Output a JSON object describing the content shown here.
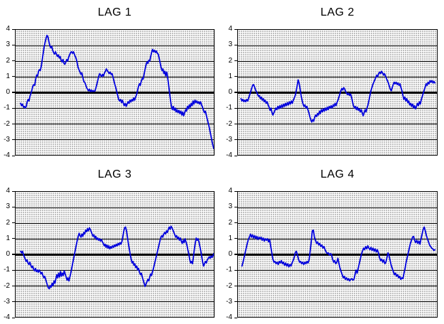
{
  "colors": {
    "series": "#0000dd",
    "plot_background": "#c0c0c0",
    "plot_pattern_dot": "#ffffff",
    "gridline": "#000000",
    "border": "#000000",
    "title_text": "#000000",
    "page_background": "#ffffff"
  },
  "chart_data": [
    {
      "type": "line",
      "title": "LAG 1",
      "xlabel": "",
      "ylabel": "",
      "ylim": [
        -4,
        4
      ],
      "yticks": [
        "4",
        "3",
        "2",
        "1",
        "0",
        "-1",
        "-2",
        "-3",
        "-4"
      ],
      "grid": "horizontal integer gridlines, bold zero line",
      "legend": "none",
      "x_start": 0.025,
      "x_end": 1.0,
      "series": [
        {
          "name": "lag1",
          "values": [
            -0.7,
            -0.85,
            -0.75,
            -0.95,
            -0.9,
            -1.0,
            -0.9,
            -0.6,
            -0.45,
            -0.55,
            -0.25,
            -0.05,
            0.15,
            0.4,
            0.5,
            0.45,
            0.85,
            1.1,
            1.05,
            1.35,
            1.45,
            1.4,
            1.7,
            2.1,
            2.5,
            2.9,
            3.2,
            3.45,
            3.65,
            3.55,
            3.25,
            3.0,
            2.85,
            2.95,
            2.7,
            2.55,
            2.45,
            2.6,
            2.45,
            2.3,
            2.4,
            2.2,
            2.3,
            2.05,
            1.95,
            2.1,
            1.85,
            1.8,
            1.95,
            2.1,
            2.0,
            2.25,
            2.4,
            2.55,
            2.6,
            2.5,
            2.6,
            2.45,
            2.3,
            2.15,
            1.9,
            1.6,
            1.45,
            1.3,
            1.15,
            1.25,
            0.95,
            0.7,
            0.65,
            0.5,
            0.3,
            0.2,
            0.1,
            0.2,
            0.05,
            0.15,
            0.05,
            0.12,
            0.06,
            0.1,
            0.3,
            0.55,
            0.8,
            1.05,
            1.2,
            1.1,
            1.0,
            1.15,
            1.05,
            1.25,
            1.35,
            1.5,
            1.4,
            1.3,
            1.2,
            1.3,
            1.15,
            1.2,
            1.0,
            0.75,
            0.5,
            0.3,
            0.05,
            -0.2,
            -0.45,
            -0.55,
            -0.45,
            -0.65,
            -0.5,
            -0.7,
            -0.85,
            -0.7,
            -0.9,
            -0.75,
            -0.6,
            -0.7,
            -0.5,
            -0.62,
            -0.45,
            -0.55,
            -0.35,
            -0.5,
            -0.3,
            -0.15,
            0.1,
            0.35,
            0.55,
            0.45,
            0.7,
            0.9,
            0.85,
            1.15,
            1.45,
            1.75,
            1.95,
            1.85,
            2.05,
            2.0,
            2.3,
            2.55,
            2.75,
            2.6,
            2.7,
            2.55,
            2.65,
            2.5,
            2.45,
            2.2,
            1.9,
            1.6,
            1.4,
            1.5,
            1.2,
            1.35,
            1.05,
            1.3,
            0.95,
            0.5,
            0.0,
            -0.5,
            -0.9,
            -1.1,
            -0.9,
            -1.15,
            -1.0,
            -1.25,
            -1.1,
            -1.3,
            -1.15,
            -1.35,
            -1.2,
            -1.45,
            -1.25,
            -1.5,
            -1.3,
            -1.1,
            -1.2,
            -0.9,
            -1.05,
            -0.8,
            -0.95,
            -0.7,
            -0.85,
            -0.55,
            -0.75,
            -0.5,
            -0.65,
            -0.55,
            -0.7,
            -0.6,
            -0.75,
            -0.6,
            -0.8,
            -0.95,
            -1.15,
            -1.3,
            -1.2,
            -1.45,
            -1.7,
            -1.95,
            -2.2,
            -2.5,
            -2.8,
            -3.1,
            -3.4,
            -3.6
          ]
        }
      ]
    },
    {
      "type": "line",
      "title": "LAG 2",
      "xlabel": "",
      "ylabel": "",
      "ylim": [
        -4,
        4
      ],
      "yticks": [
        "4",
        "3",
        "2",
        "1",
        "0",
        "-1",
        "-2",
        "-3",
        "-4"
      ],
      "grid": "horizontal integer gridlines, bold zero line",
      "legend": "none",
      "x_start": 0.015,
      "x_end": 0.99,
      "series": [
        {
          "name": "lag2",
          "values": [
            -0.4,
            -0.55,
            -0.45,
            -0.6,
            -0.5,
            -0.6,
            -0.45,
            -0.55,
            -0.35,
            -0.15,
            0.05,
            0.25,
            0.45,
            0.5,
            0.35,
            0.15,
            0.05,
            -0.1,
            -0.25,
            -0.2,
            -0.4,
            -0.3,
            -0.5,
            -0.4,
            -0.6,
            -0.5,
            -0.7,
            -0.6,
            -0.8,
            -0.95,
            -1.15,
            -1.0,
            -1.3,
            -1.45,
            -1.3,
            -1.15,
            -1.0,
            -1.1,
            -0.9,
            -1.05,
            -0.85,
            -1.0,
            -0.8,
            -0.95,
            -0.75,
            -0.9,
            -0.7,
            -0.85,
            -0.65,
            -0.8,
            -0.6,
            -0.75,
            -0.55,
            -0.7,
            -0.5,
            -0.35,
            -0.2,
            0.1,
            0.45,
            0.8,
            0.6,
            0.2,
            -0.2,
            -0.5,
            -0.75,
            -0.9,
            -0.8,
            -1.0,
            -0.9,
            -1.1,
            -1.3,
            -1.55,
            -1.75,
            -1.9,
            -1.75,
            -1.85,
            -1.6,
            -1.45,
            -1.55,
            -1.35,
            -1.45,
            -1.2,
            -1.35,
            -1.1,
            -1.25,
            -1.05,
            -1.2,
            -1.0,
            -1.15,
            -0.95,
            -1.1,
            -0.9,
            -1.0,
            -0.85,
            -1.0,
            -0.8,
            -0.9,
            -0.7,
            -0.85,
            -0.65,
            -0.5,
            -0.3,
            -0.1,
            0.1,
            0.25,
            0.15,
            0.3,
            0.2,
            0.05,
            -0.05,
            -0.15,
            -0.05,
            -0.2,
            -0.1,
            -0.3,
            -0.6,
            -0.85,
            -1.0,
            -0.9,
            -1.1,
            -0.95,
            -1.15,
            -1.05,
            -1.25,
            -1.1,
            -1.3,
            -1.5,
            -1.3,
            -1.1,
            -1.25,
            -1.0,
            -0.8,
            -0.5,
            -0.2,
            0.1,
            0.3,
            0.5,
            0.65,
            0.8,
            0.95,
            1.1,
            1.0,
            1.2,
            1.3,
            1.2,
            1.35,
            1.25,
            1.1,
            1.2,
            1.05,
            0.9,
            0.75,
            0.6,
            0.4,
            0.2,
            0.1,
            0.3,
            0.5,
            0.65,
            0.55,
            0.65,
            0.5,
            0.6,
            0.45,
            0.55,
            0.3,
            0.1,
            -0.2,
            -0.45,
            -0.3,
            -0.55,
            -0.4,
            -0.65,
            -0.55,
            -0.8,
            -0.7,
            -0.9,
            -0.75,
            -1.0,
            -0.85,
            -1.05,
            -0.9,
            -0.7,
            -0.85,
            -0.6,
            -0.75,
            -0.45,
            -0.25,
            -0.05,
            0.15,
            0.35,
            0.55,
            0.45,
            0.65,
            0.55,
            0.75,
            0.65,
            0.75,
            0.6,
            0.7,
            0.6
          ]
        }
      ]
    },
    {
      "type": "line",
      "title": "LAG 3",
      "xlabel": "",
      "ylabel": "",
      "ylim": [
        -4,
        4
      ],
      "yticks": [
        "4",
        "3",
        "2",
        "1",
        "0",
        "-1",
        "-2",
        "-3",
        "-4"
      ],
      "grid": "horizontal integer gridlines, bold zero line",
      "legend": "none",
      "x_start": 0.025,
      "x_end": 1.0,
      "series": [
        {
          "name": "lag3",
          "values": [
            0.2,
            0.1,
            0.2,
            0.0,
            -0.15,
            -0.3,
            -0.45,
            -0.35,
            -0.55,
            -0.65,
            -0.5,
            -0.7,
            -0.85,
            -0.75,
            -0.95,
            -1.05,
            -0.9,
            -1.1,
            -1.0,
            -1.15,
            -1.0,
            -1.1,
            -1.25,
            -1.15,
            -1.35,
            -1.5,
            -1.4,
            -1.6,
            -1.8,
            -2.0,
            -2.15,
            -2.2,
            -2.0,
            -2.1,
            -1.85,
            -2.0,
            -1.7,
            -1.85,
            -1.55,
            -1.3,
            -1.5,
            -1.2,
            -1.45,
            -1.1,
            -1.4,
            -1.2,
            -1.35,
            -1.05,
            -1.25,
            -1.45,
            -1.65,
            -1.5,
            -1.7,
            -1.45,
            -1.2,
            -0.9,
            -0.6,
            -0.3,
            0.0,
            0.3,
            0.6,
            0.9,
            1.15,
            1.35,
            1.2,
            1.1,
            1.3,
            1.15,
            1.4,
            1.3,
            1.55,
            1.45,
            1.65,
            1.5,
            1.7,
            1.6,
            1.45,
            1.3,
            1.15,
            1.25,
            1.05,
            1.15,
            0.95,
            1.05,
            0.9,
            1.0,
            0.85,
            0.95,
            0.8,
            0.7,
            0.55,
            0.65,
            0.45,
            0.6,
            0.4,
            0.55,
            0.35,
            0.5,
            0.4,
            0.55,
            0.45,
            0.6,
            0.5,
            0.65,
            0.55,
            0.7,
            0.6,
            0.75,
            0.65,
            0.8,
            1.1,
            1.45,
            1.7,
            1.75,
            1.5,
            1.1,
            0.7,
            0.35,
            0.0,
            -0.3,
            -0.55,
            -0.45,
            -0.7,
            -0.6,
            -0.85,
            -0.75,
            -1.0,
            -0.9,
            -1.15,
            -1.3,
            -1.2,
            -1.45,
            -1.65,
            -1.85,
            -2.05,
            -1.9,
            -1.75,
            -1.6,
            -1.7,
            -1.45,
            -1.25,
            -1.35,
            -1.1,
            -0.9,
            -0.65,
            -0.4,
            -0.15,
            0.1,
            0.35,
            0.6,
            0.85,
            1.1,
            1.2,
            1.1,
            1.3,
            1.4,
            1.3,
            1.5,
            1.4,
            1.6,
            1.75,
            1.6,
            1.8,
            1.7,
            1.55,
            1.4,
            1.25,
            1.1,
            1.2,
            1.0,
            1.1,
            0.9,
            1.05,
            0.85,
            0.7,
            0.9,
            0.75,
            1.0,
            0.8,
            0.6,
            0.3,
            0.05,
            -0.3,
            -0.55,
            -0.45,
            -0.6,
            -0.2,
            0.3,
            0.7,
            1.05,
            0.9,
            1.0,
            0.8,
            0.5,
            0.2,
            -0.15,
            -0.5,
            -0.75,
            -0.6,
            -0.45,
            -0.55,
            -0.35,
            -0.25,
            -0.15,
            -0.25,
            -0.1,
            -0.2,
            -0.1,
            0.05
          ]
        }
      ]
    },
    {
      "type": "line",
      "title": "LAG 4",
      "xlabel": "",
      "ylabel": "",
      "ylim": [
        -4,
        4
      ],
      "yticks": [
        "4",
        "3",
        "2",
        "1",
        "0",
        "-1",
        "-2",
        "-3",
        "-4"
      ],
      "grid": "horizontal integer gridlines, bold zero line",
      "legend": "none",
      "x_start": 0.02,
      "x_end": 0.99,
      "series": [
        {
          "name": "lag4",
          "values": [
            -0.75,
            -0.5,
            -0.2,
            0.1,
            0.4,
            0.7,
            0.95,
            1.1,
            1.3,
            1.1,
            1.25,
            1.05,
            1.2,
            1.0,
            1.15,
            0.95,
            1.1,
            1.0,
            1.1,
            0.9,
            1.05,
            0.85,
            1.0,
            0.9,
            1.0,
            0.8,
            0.95,
            0.5,
            0.1,
            -0.3,
            -0.5,
            -0.45,
            -0.6,
            -0.5,
            -0.65,
            -0.45,
            -0.55,
            -0.4,
            -0.6,
            -0.5,
            -0.7,
            -0.55,
            -0.75,
            -0.6,
            -0.8,
            -0.65,
            -0.75,
            -0.55,
            -0.4,
            -0.2,
            0.1,
            0.2,
            0.0,
            -0.3,
            -0.5,
            -0.45,
            -0.6,
            -0.5,
            -0.65,
            -0.5,
            -0.6,
            -0.45,
            -0.55,
            -0.35,
            0.2,
            0.8,
            1.5,
            1.55,
            1.1,
            0.9,
            0.7,
            0.8,
            0.6,
            0.7,
            0.5,
            0.6,
            0.4,
            0.5,
            0.3,
            0.15,
            0.05,
            0.1,
            -0.05,
            0.05,
            0.0,
            -0.3,
            -0.5,
            -0.4,
            -0.6,
            -0.5,
            -0.25,
            -0.6,
            -0.9,
            -1.1,
            -1.3,
            -1.5,
            -1.4,
            -1.6,
            -1.5,
            -1.65,
            -1.55,
            -1.7,
            -1.6,
            -1.55,
            -1.65,
            -1.6,
            -1.3,
            -1.0,
            -1.2,
            -0.9,
            -0.6,
            -0.3,
            0.0,
            0.2,
            0.4,
            0.3,
            0.5,
            0.35,
            0.55,
            0.4,
            0.3,
            0.45,
            0.25,
            0.4,
            0.2,
            0.35,
            0.15,
            0.3,
            0.1,
            -0.2,
            -0.4,
            -0.3,
            -0.5,
            -0.35,
            -0.6,
            -0.5,
            -0.2,
            0.1,
            -0.1,
            -0.4,
            -0.7,
            -0.9,
            -1.1,
            -1.3,
            -1.2,
            -1.4,
            -1.3,
            -1.5,
            -1.4,
            -1.6,
            -1.5,
            -1.55,
            -1.2,
            -0.9,
            -0.5,
            -0.2,
            0.1,
            0.4,
            0.7,
            0.9,
            1.1,
            1.15,
            0.9,
            0.75,
            0.9,
            0.7,
            0.85,
            0.65,
            1.0,
            1.3,
            1.6,
            1.75,
            1.5,
            1.2,
            1.0,
            0.8,
            0.6,
            0.5,
            0.4,
            0.35,
            0.25,
            0.3
          ]
        }
      ]
    }
  ]
}
